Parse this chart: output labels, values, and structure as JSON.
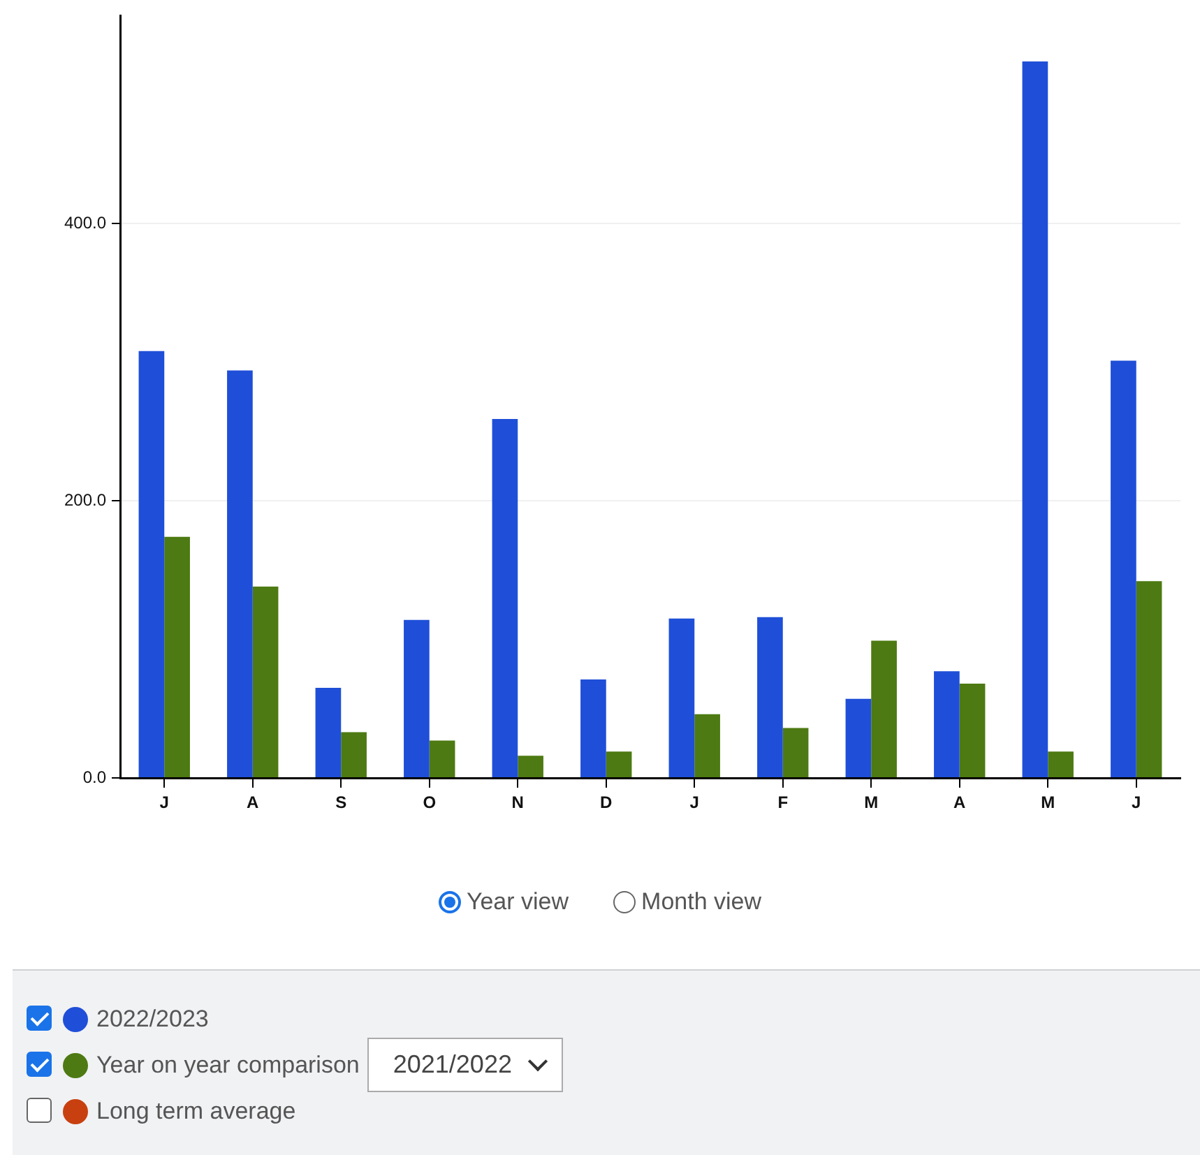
{
  "chart_data": {
    "type": "bar",
    "categories": [
      "J",
      "A",
      "S",
      "O",
      "N",
      "D",
      "J",
      "F",
      "M",
      "A",
      "M",
      "J"
    ],
    "series": [
      {
        "name": "2022/2023",
        "color": "#1f4fd8",
        "values": [
          308,
          294,
          65,
          114,
          259,
          71,
          115,
          116,
          57,
          77,
          517,
          301
        ]
      },
      {
        "name": "Year on year comparison",
        "color": "#4d7a12",
        "values": [
          174,
          138,
          33,
          27,
          16,
          19,
          46,
          36,
          99,
          68,
          19,
          142
        ]
      },
      {
        "name": "Long term average",
        "color": "#c8400f",
        "values": [
          null,
          null,
          null,
          null,
          null,
          null,
          null,
          null,
          null,
          null,
          null,
          null
        ]
      }
    ],
    "ylim": [
      0,
      550
    ],
    "yticks": [
      {
        "value": 0,
        "label": "0.0"
      },
      {
        "value": 200,
        "label": "200.0"
      },
      {
        "value": 400,
        "label": "400.0"
      }
    ],
    "grid": "y",
    "legend": "bottom",
    "annotations": [
      "Year view",
      "Month view",
      "2021/2022"
    ]
  }
}
